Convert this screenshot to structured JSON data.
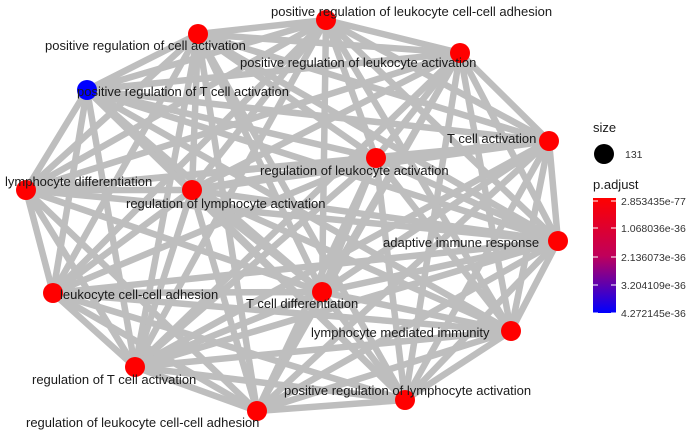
{
  "nodes": [
    {
      "label": "positive regulation of leukocyte cell-cell adhesion",
      "color": "#FF0000"
    },
    {
      "label": "positive regulation of cell activation",
      "color": "#FF0000"
    },
    {
      "label": "positive regulation of leukocyte activation",
      "color": "#FF0000"
    },
    {
      "label": "positive regulation of T cell activation",
      "color": "#0000FF"
    },
    {
      "label": "T cell activation",
      "color": "#FF0000"
    },
    {
      "label": "regulation of leukocyte activation",
      "color": "#FF0000"
    },
    {
      "label": "lymphocyte differentiation",
      "color": "#FF0000"
    },
    {
      "label": "regulation of lymphocyte activation",
      "color": "#FF0000"
    },
    {
      "label": "adaptive immune response",
      "color": "#FF0000"
    },
    {
      "label": "leukocyte cell-cell adhesion",
      "color": "#FF0000"
    },
    {
      "label": "T cell differentiation",
      "color": "#FF0000"
    },
    {
      "label": "lymphocyte mediated immunity",
      "color": "#FF0000"
    },
    {
      "label": "regulation of T cell activation",
      "color": "#FF0000"
    },
    {
      "label": "positive regulation of lymphocyte activation",
      "color": "#FF0000"
    },
    {
      "label": "regulation of leukocyte cell-cell adhesion",
      "color": "#FF0000"
    }
  ],
  "edge_color": "#BEBEBE",
  "legend": {
    "size_title": "size",
    "size_value": "131",
    "color_title": "p.adjust",
    "color_ticks": [
      "2.853435e-77",
      "1.068036e-36",
      "2.136073e-36",
      "3.204109e-36",
      "4.272145e-36"
    ],
    "gradient_top": "#FF0000",
    "gradient_bottom": "#0000FF"
  }
}
